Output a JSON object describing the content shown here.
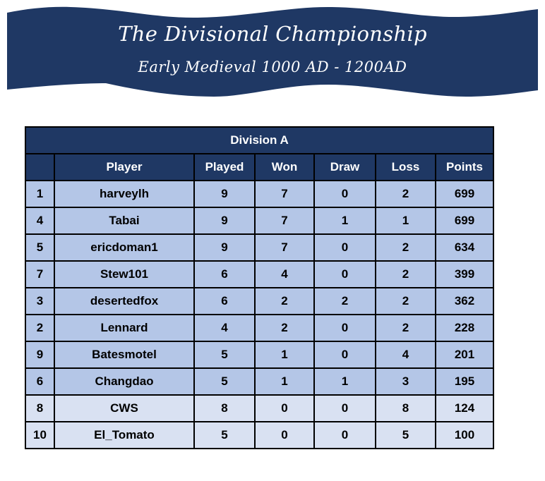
{
  "banner": {
    "title": "The Divisional Championship",
    "subtitle": "Early Medieval 1000 AD - 1200AD",
    "color": "#1F3864"
  },
  "table": {
    "division_title": "Division A",
    "columns": [
      "",
      "Player",
      "Played",
      "Won",
      "Draw",
      "Loss",
      "Points"
    ],
    "colors": {
      "header": "#1F3864",
      "row_primary": "#B4C6E7",
      "row_secondary": "#D9E1F2"
    },
    "rows": [
      {
        "rank": "1",
        "player": "harveylh",
        "played": "9",
        "won": "7",
        "draw": "0",
        "loss": "2",
        "points": "699"
      },
      {
        "rank": "4",
        "player": "Tabai",
        "played": "9",
        "won": "7",
        "draw": "1",
        "loss": "1",
        "points": "699"
      },
      {
        "rank": "5",
        "player": "ericdoman1",
        "played": "9",
        "won": "7",
        "draw": "0",
        "loss": "2",
        "points": "634"
      },
      {
        "rank": "7",
        "player": "Stew101",
        "played": "6",
        "won": "4",
        "draw": "0",
        "loss": "2",
        "points": "399"
      },
      {
        "rank": "3",
        "player": "desertedfox",
        "played": "6",
        "won": "2",
        "draw": "2",
        "loss": "2",
        "points": "362"
      },
      {
        "rank": "2",
        "player": "Lennard",
        "played": "4",
        "won": "2",
        "draw": "0",
        "loss": "2",
        "points": "228"
      },
      {
        "rank": "9",
        "player": "Batesmotel",
        "played": "5",
        "won": "1",
        "draw": "0",
        "loss": "4",
        "points": "201"
      },
      {
        "rank": "6",
        "player": "Changdao",
        "played": "5",
        "won": "1",
        "draw": "1",
        "loss": "3",
        "points": "195"
      },
      {
        "rank": "8",
        "player": "CWS",
        "played": "8",
        "won": "0",
        "draw": "0",
        "loss": "8",
        "points": "124"
      },
      {
        "rank": "10",
        "player": "El_Tomato",
        "played": "5",
        "won": "0",
        "draw": "0",
        "loss": "5",
        "points": "100"
      }
    ]
  }
}
